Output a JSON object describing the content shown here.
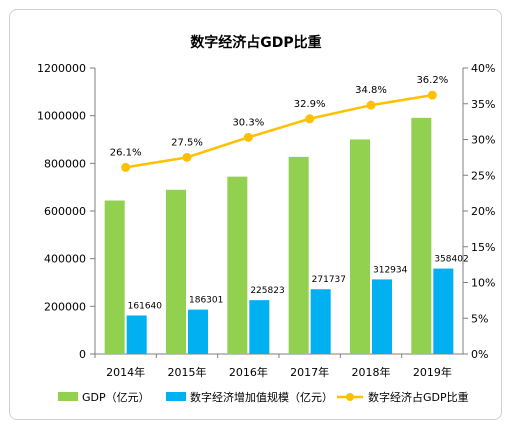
{
  "chart_data": {
    "type": "bar+line",
    "title": "数字经济占GDP比重",
    "categories": [
      "2014年",
      "2015年",
      "2016年",
      "2017年",
      "2018年",
      "2019年"
    ],
    "series": [
      {
        "name": "GDP（亿元）",
        "type": "bar",
        "color": "#92d050",
        "axis": "left",
        "values": [
          643974,
          689052,
          744127,
          827122,
          900309,
          990865
        ]
      },
      {
        "name": "数字经济增加值规模（亿元）",
        "type": "bar",
        "color": "#00b0f0",
        "axis": "left",
        "values": [
          161640,
          186301,
          225823,
          271737,
          312934,
          358402
        ],
        "labels": [
          "161640",
          "186301",
          "225823",
          "271737",
          "312934",
          "358402"
        ]
      },
      {
        "name": "数字经济占GDP比重",
        "type": "line",
        "color": "#ffc000",
        "axis": "right",
        "values": [
          26.1,
          27.5,
          30.3,
          32.9,
          34.8,
          36.2
        ],
        "labels": [
          "26.1%",
          "27.5%",
          "30.3%",
          "32.9%",
          "34.8%",
          "36.2%"
        ]
      }
    ],
    "y_left": {
      "min": 0,
      "max": 1200000,
      "ticks": [
        "0",
        "200000",
        "400000",
        "600000",
        "800000",
        "1000000",
        "1200000"
      ]
    },
    "y_right": {
      "min": 0,
      "max": 40,
      "ticks": [
        "0%",
        "5%",
        "10%",
        "15%",
        "20%",
        "25%",
        "30%",
        "35%",
        "40%"
      ]
    },
    "grid": false,
    "legend": "bottom"
  }
}
